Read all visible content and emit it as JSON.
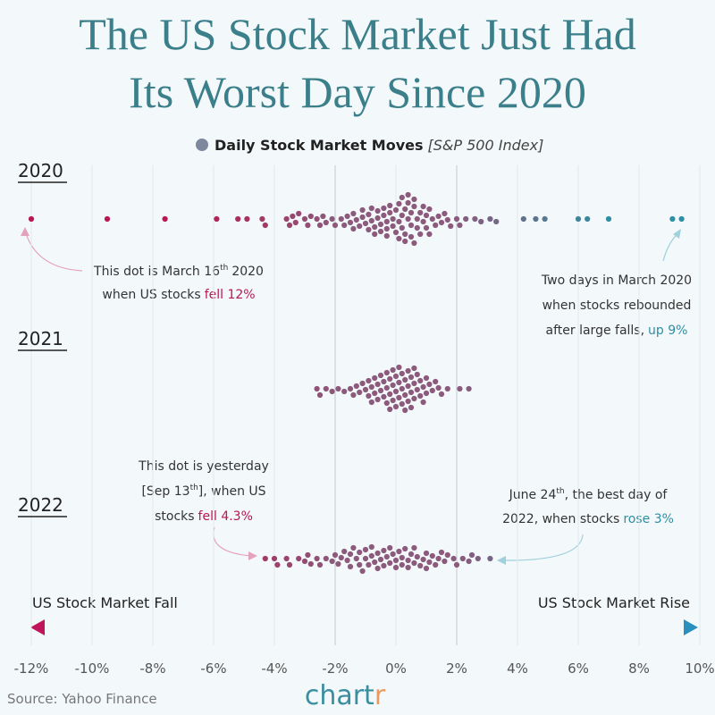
{
  "chart_data": {
    "type": "beeswarm",
    "title": [
      "The US Stock Market Just Had",
      "Its Worst Day Since 2020"
    ],
    "legend": {
      "label": "Daily Stock Market Moves",
      "note": "[S&P 500 Index]"
    },
    "colors": {
      "dots": "#8b5a7c",
      "fall": "#b8174f",
      "rise": "#2e8ea3"
    },
    "groups": [
      {
        "name": "2020",
        "values": [
          -12,
          -9.5,
          -7.6,
          -5.9,
          -5.2,
          -4.9,
          -4.4,
          -4.3,
          -3.6,
          -3.5,
          -3.4,
          -3.3,
          -3.2,
          -3.0,
          -2.9,
          -2.8,
          -2.6,
          -2.5,
          -2.4,
          -2.3,
          -2.1,
          -2.0,
          -1.8,
          -1.7,
          -1.6,
          -1.5,
          -1.4,
          -1.4,
          -1.3,
          -1.2,
          -1.1,
          -1.1,
          -1.0,
          -0.9,
          -0.9,
          -0.8,
          -0.8,
          -0.7,
          -0.7,
          -0.6,
          -0.6,
          -0.5,
          -0.5,
          -0.4,
          -0.4,
          -0.3,
          -0.3,
          -0.3,
          -0.2,
          -0.2,
          -0.1,
          -0.1,
          0,
          0,
          0.1,
          0.1,
          0.1,
          0.2,
          0.2,
          0.2,
          0.3,
          0.3,
          0.3,
          0.4,
          0.4,
          0.4,
          0.5,
          0.5,
          0.5,
          0.6,
          0.6,
          0.6,
          0.7,
          0.7,
          0.8,
          0.8,
          0.9,
          0.9,
          1.0,
          1.0,
          1.1,
          1.1,
          1.2,
          1.3,
          1.4,
          1.5,
          1.6,
          1.7,
          1.8,
          2.0,
          2.1,
          2.3,
          2.6,
          2.8,
          3.1,
          3.3,
          4.2,
          4.6,
          4.9,
          6.0,
          6.3,
          7.0,
          9.1,
          9.4
        ]
      },
      {
        "name": "2021",
        "values": [
          -2.6,
          -2.5,
          -2.3,
          -2.1,
          -1.9,
          -1.7,
          -1.5,
          -1.4,
          -1.3,
          -1.2,
          -1.1,
          -1.0,
          -0.9,
          -0.9,
          -0.8,
          -0.8,
          -0.7,
          -0.7,
          -0.6,
          -0.6,
          -0.5,
          -0.5,
          -0.4,
          -0.4,
          -0.3,
          -0.3,
          -0.3,
          -0.2,
          -0.2,
          -0.2,
          -0.1,
          -0.1,
          -0.1,
          0,
          0,
          0,
          0.1,
          0.1,
          0.1,
          0.2,
          0.2,
          0.2,
          0.3,
          0.3,
          0.3,
          0.4,
          0.4,
          0.4,
          0.5,
          0.5,
          0.5,
          0.6,
          0.6,
          0.6,
          0.7,
          0.7,
          0.8,
          0.8,
          0.9,
          0.9,
          1.0,
          1.0,
          1.1,
          1.2,
          1.3,
          1.4,
          1.5,
          1.7,
          2.1,
          2.4
        ]
      },
      {
        "name": "2022",
        "values": [
          -4.3,
          -4.0,
          -3.9,
          -3.6,
          -3.5,
          -3.2,
          -3.0,
          -2.9,
          -2.8,
          -2.6,
          -2.5,
          -2.3,
          -2.1,
          -2.0,
          -1.9,
          -1.8,
          -1.7,
          -1.6,
          -1.5,
          -1.5,
          -1.4,
          -1.3,
          -1.2,
          -1.2,
          -1.1,
          -1.0,
          -1.0,
          -0.9,
          -0.8,
          -0.8,
          -0.7,
          -0.6,
          -0.6,
          -0.5,
          -0.4,
          -0.4,
          -0.3,
          -0.2,
          -0.2,
          -0.1,
          0,
          0,
          0.1,
          0.2,
          0.2,
          0.3,
          0.4,
          0.4,
          0.5,
          0.6,
          0.6,
          0.7,
          0.8,
          0.9,
          1.0,
          1.0,
          1.1,
          1.2,
          1.3,
          1.4,
          1.5,
          1.6,
          1.7,
          1.9,
          2.0,
          2.2,
          2.4,
          2.5,
          2.7,
          3.1
        ]
      }
    ],
    "xlim": [
      -12,
      10
    ],
    "xticks": [
      {
        "value": -12,
        "label": "-12%"
      },
      {
        "value": -10,
        "label": "-10%"
      },
      {
        "value": -8,
        "label": "-8%"
      },
      {
        "value": -6,
        "label": "-6%"
      },
      {
        "value": -4,
        "label": "-4%"
      },
      {
        "value": -2,
        "label": "-2%"
      },
      {
        "value": 0,
        "label": "0%"
      },
      {
        "value": 2,
        "label": "2%"
      },
      {
        "value": 4,
        "label": "4%"
      },
      {
        "value": 6,
        "label": "6%"
      },
      {
        "value": 8,
        "label": "8%"
      },
      {
        "value": 10,
        "label": "10%"
      }
    ],
    "reference_lines": [
      -2,
      2
    ],
    "axis_labels": {
      "left": "US Stock Market Fall",
      "right": "US Stock Market Rise"
    },
    "annotations": [
      [
        "This dot is March 16",
        "th",
        "2020",
        "when US stocks",
        "fell 12%"
      ],
      [
        "Two days in March 2020",
        "when stocks rebounded",
        "after large falls,",
        "up 9%"
      ],
      [
        "This dot is yesterday",
        "[Sep 13",
        "th",
        "], when US",
        "stocks",
        "fell 4.3%"
      ],
      [
        "June 24",
        "th",
        ", the best day of",
        "2022, when stocks",
        "rose 3%"
      ]
    ],
    "source": "Source: Yahoo Finance",
    "logo": [
      "chart",
      "r"
    ]
  }
}
